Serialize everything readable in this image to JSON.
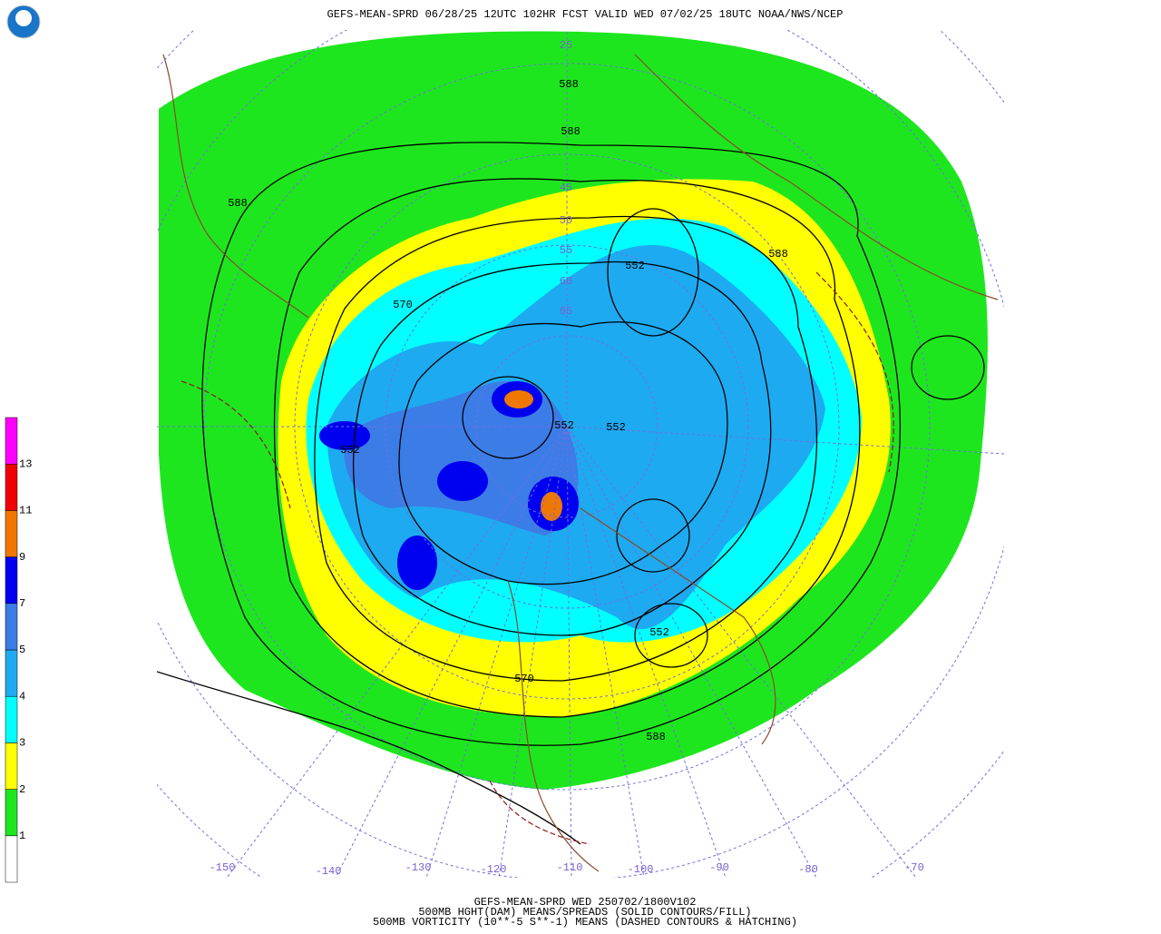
{
  "header": {
    "title": "GEFS-MEAN-SPRD 06/28/25 12UTC 102HR FCST VALID WED 07/02/25 18UTC NOAA/NWS/NCEP"
  },
  "footer": {
    "lines": [
      "GEFS-MEAN-SPRD WED 250702/1800V102",
      "500MB HGHT(DAM) MEANS/SPREADS (SOLID CONTOURS/FILL)",
      "500MB VORTICITY (10**-5 S**-1) MEANS (DASHED CONTOURS & HATCHING)"
    ]
  },
  "legend": {
    "levels": [
      "1",
      "2",
      "3",
      "4",
      "5",
      "7",
      "9",
      "11",
      "13"
    ],
    "colors": [
      "#ffffff",
      "#1ee61e",
      "#ffff00",
      "#00ffff",
      "#1eaaf0",
      "#3c7ce6",
      "#0000f0",
      "#f07800",
      "#f00000",
      "#ff00ff"
    ]
  },
  "map": {
    "longitude_labels": [
      "-150",
      "-140",
      "-130",
      "-120",
      "-110",
      "-100",
      "-90",
      "-80",
      "-70"
    ],
    "latitude_labels": [
      "25",
      "45",
      "50",
      "55",
      "60",
      "65"
    ],
    "contour_labels": [
      "588",
      "588",
      "588",
      "588",
      "588",
      "570",
      "570",
      "552",
      "552",
      "552",
      "552",
      "552"
    ]
  }
}
